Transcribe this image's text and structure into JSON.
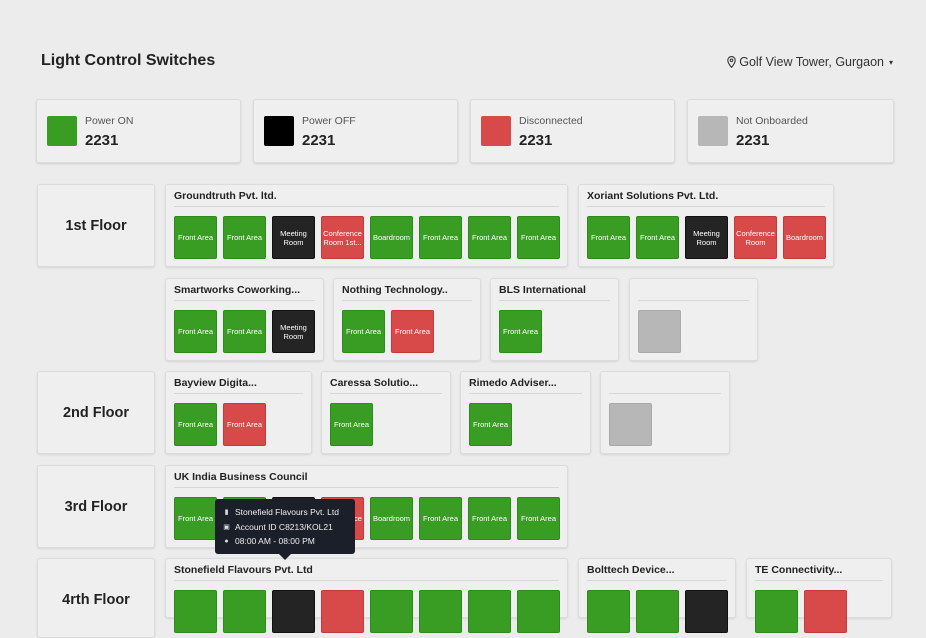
{
  "header": {
    "title": "Light Control Switches",
    "location": "Golf View Tower, Gurgaon"
  },
  "colors": {
    "on": "#3a9d23",
    "off": "#242424",
    "disconnected": "#d84a4a",
    "not_onboarded": "#b7b7b7"
  },
  "stats": [
    {
      "label": "Power ON",
      "value": "2231"
    },
    {
      "label": "Power OFF",
      "value": "2231"
    },
    {
      "label": "Disconnected",
      "value": "2231"
    },
    {
      "label": "Not Onboarded",
      "value": "2231"
    }
  ],
  "floors": [
    {
      "label": "1st Floor"
    },
    {
      "label": "2nd Floor"
    },
    {
      "label": "3rd Floor"
    },
    {
      "label": "4rth Floor"
    }
  ],
  "cards": [
    {
      "title": "Groundtruth Pvt. ltd.",
      "switches": [
        {
          "label": "Front Area",
          "state": "on"
        },
        {
          "label": "Front Area",
          "state": "on"
        },
        {
          "label": "Meeting Room",
          "state": "off"
        },
        {
          "label": "Conference Room 1st...",
          "state": "disconnected"
        },
        {
          "label": "Boardroom",
          "state": "on"
        },
        {
          "label": "Front Area",
          "state": "on"
        },
        {
          "label": "Front Area",
          "state": "on"
        },
        {
          "label": "Front Area",
          "state": "on"
        }
      ]
    },
    {
      "title": "Xoriant Solutions Pvt. Ltd.",
      "switches": [
        {
          "label": "Front Area",
          "state": "on"
        },
        {
          "label": "Front Area",
          "state": "on"
        },
        {
          "label": "Meeting Room",
          "state": "off"
        },
        {
          "label": "Conference Room",
          "state": "disconnected"
        },
        {
          "label": "Boardroom",
          "state": "disconnected"
        }
      ]
    },
    {
      "title": "Smartworks Coworking...",
      "switches": [
        {
          "label": "Front Area",
          "state": "on"
        },
        {
          "label": "Front Area",
          "state": "on"
        },
        {
          "label": "Meeting Room",
          "state": "off"
        }
      ]
    },
    {
      "title": "Nothing Technology..",
      "switches": [
        {
          "label": "Front Area",
          "state": "on"
        },
        {
          "label": "Front Area",
          "state": "disconnected"
        }
      ]
    },
    {
      "title": "BLS International",
      "switches": [
        {
          "label": "Front Area",
          "state": "on"
        }
      ]
    },
    {
      "title": "",
      "switches": [
        {
          "label": "",
          "state": "not_onboarded"
        }
      ]
    },
    {
      "title": "Bayview Digita...",
      "switches": [
        {
          "label": "Front Area",
          "state": "on"
        },
        {
          "label": "Front Area",
          "state": "disconnected"
        }
      ]
    },
    {
      "title": "Caressa Solutio...",
      "switches": [
        {
          "label": "Front Area",
          "state": "on"
        }
      ]
    },
    {
      "title": "Rimedo Adviser...",
      "switches": [
        {
          "label": "Front Area",
          "state": "on"
        }
      ]
    },
    {
      "title": "",
      "switches": [
        {
          "label": "",
          "state": "not_onboarded"
        }
      ]
    },
    {
      "title": "UK India Business Council",
      "switches": [
        {
          "label": "Front Area",
          "state": "on"
        },
        {
          "label": "",
          "state": "on"
        },
        {
          "label": "",
          "state": "off"
        },
        {
          "label": "Conference",
          "state": "disconnected"
        },
        {
          "label": "Boardroom",
          "state": "on"
        },
        {
          "label": "Front Area",
          "state": "on"
        },
        {
          "label": "Front Area",
          "state": "on"
        },
        {
          "label": "Front Area",
          "state": "on"
        }
      ]
    },
    {
      "title": "Stonefield Flavours Pvt. Ltd",
      "switches": [
        {
          "label": "",
          "state": "on"
        },
        {
          "label": "",
          "state": "on"
        },
        {
          "label": "",
          "state": "off"
        },
        {
          "label": "",
          "state": "disconnected"
        },
        {
          "label": "",
          "state": "on"
        },
        {
          "label": "",
          "state": "on"
        },
        {
          "label": "",
          "state": "on"
        },
        {
          "label": "",
          "state": "on"
        }
      ]
    },
    {
      "title": "Bolttech Device...",
      "switches": [
        {
          "label": "",
          "state": "on"
        },
        {
          "label": "",
          "state": "on"
        },
        {
          "label": "",
          "state": "off"
        }
      ]
    },
    {
      "title": "TE Connectivity...",
      "switches": [
        {
          "label": "",
          "state": "on"
        },
        {
          "label": "",
          "state": "disconnected"
        }
      ]
    }
  ],
  "tooltip": {
    "company": "Stonefield Flavours Pvt. Ltd",
    "account": "Account ID C8213/KOL21",
    "hours": "08:00 AM - 08:00 PM",
    "icons": [
      "building-icon",
      "id-card-icon",
      "clock-icon"
    ]
  }
}
